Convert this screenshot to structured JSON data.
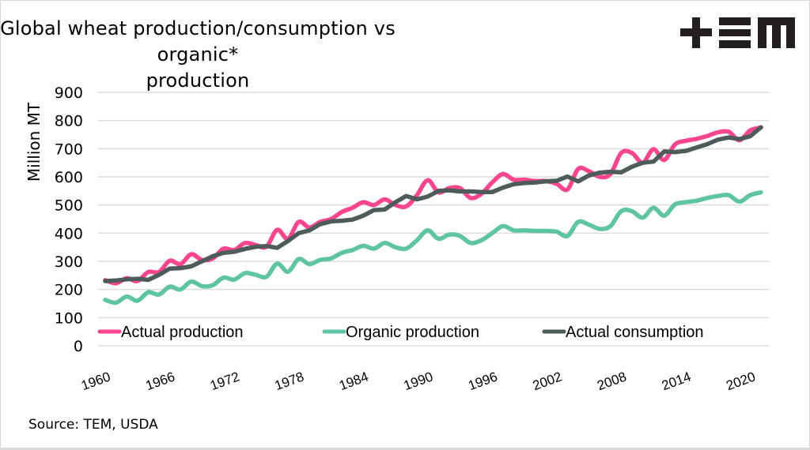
{
  "logo": {
    "text": "TEM",
    "icon": "tem-logo"
  },
  "source": "Source: TEM, USDA",
  "chart_data": {
    "type": "line",
    "title_lines": [
      "Global wheat production/consumption vs organic*",
      "production"
    ],
    "title": "Global wheat production/consumption vs organic* production",
    "xlabel": "",
    "ylabel": "Million MT",
    "ylim": [
      0,
      900
    ],
    "yticks": [
      0,
      100,
      200,
      300,
      400,
      500,
      600,
      700,
      800,
      900
    ],
    "xlim": [
      1960,
      2021
    ],
    "xticks": [
      1960,
      1966,
      1972,
      1978,
      1984,
      1990,
      1996,
      2002,
      2008,
      2014,
      2020
    ],
    "grid": true,
    "legend_position": "bottom-inside",
    "x": [
      1960,
      1961,
      1962,
      1963,
      1964,
      1965,
      1966,
      1967,
      1968,
      1969,
      1970,
      1971,
      1972,
      1973,
      1974,
      1975,
      1976,
      1977,
      1978,
      1979,
      1980,
      1981,
      1982,
      1983,
      1984,
      1985,
      1986,
      1987,
      1988,
      1989,
      1990,
      1991,
      1992,
      1993,
      1994,
      1995,
      1996,
      1997,
      1998,
      1999,
      2000,
      2001,
      2002,
      2003,
      2004,
      2005,
      2006,
      2007,
      2008,
      2009,
      2010,
      2011,
      2012,
      2013,
      2014,
      2015,
      2016,
      2017,
      2018,
      2019,
      2020,
      2021
    ],
    "series": [
      {
        "name": "Actual production",
        "color": "#f9468e",
        "values": [
          233,
          222,
          240,
          230,
          262,
          262,
          302,
          290,
          325,
          305,
          310,
          345,
          340,
          365,
          358,
          352,
          412,
          380,
          440,
          420,
          440,
          450,
          475,
          490,
          510,
          500,
          520,
          500,
          495,
          535,
          588,
          545,
          560,
          560,
          525,
          540,
          580,
          610,
          590,
          590,
          585,
          585,
          575,
          555,
          628,
          620,
          600,
          610,
          685,
          685,
          650,
          698,
          660,
          715,
          728,
          735,
          745,
          758,
          760,
          730,
          765,
          775
        ]
      },
      {
        "name": "Organic production",
        "color": "#5fc4a0",
        "values": [
          163,
          153,
          175,
          160,
          190,
          182,
          210,
          200,
          228,
          212,
          215,
          242,
          235,
          258,
          252,
          245,
          292,
          263,
          308,
          290,
          305,
          310,
          330,
          340,
          355,
          345,
          365,
          350,
          345,
          375,
          410,
          380,
          395,
          390,
          365,
          375,
          400,
          425,
          410,
          410,
          408,
          408,
          405,
          390,
          440,
          430,
          415,
          425,
          478,
          478,
          455,
          490,
          462,
          502,
          510,
          515,
          525,
          532,
          535,
          512,
          535,
          545
        ]
      },
      {
        "name": "Actual consumption",
        "color": "#4d5b5b",
        "values": [
          230,
          232,
          236,
          238,
          234,
          252,
          274,
          276,
          282,
          300,
          318,
          330,
          334,
          344,
          352,
          354,
          348,
          372,
          400,
          410,
          432,
          442,
          444,
          448,
          462,
          482,
          484,
          510,
          532,
          520,
          530,
          550,
          552,
          548,
          548,
          546,
          546,
          562,
          574,
          578,
          580,
          584,
          586,
          601,
          584,
          605,
          615,
          618,
          616,
          636,
          650,
          654,
          690,
          688,
          692,
          704,
          716,
          732,
          740,
          734,
          744,
          776
        ]
      }
    ]
  }
}
